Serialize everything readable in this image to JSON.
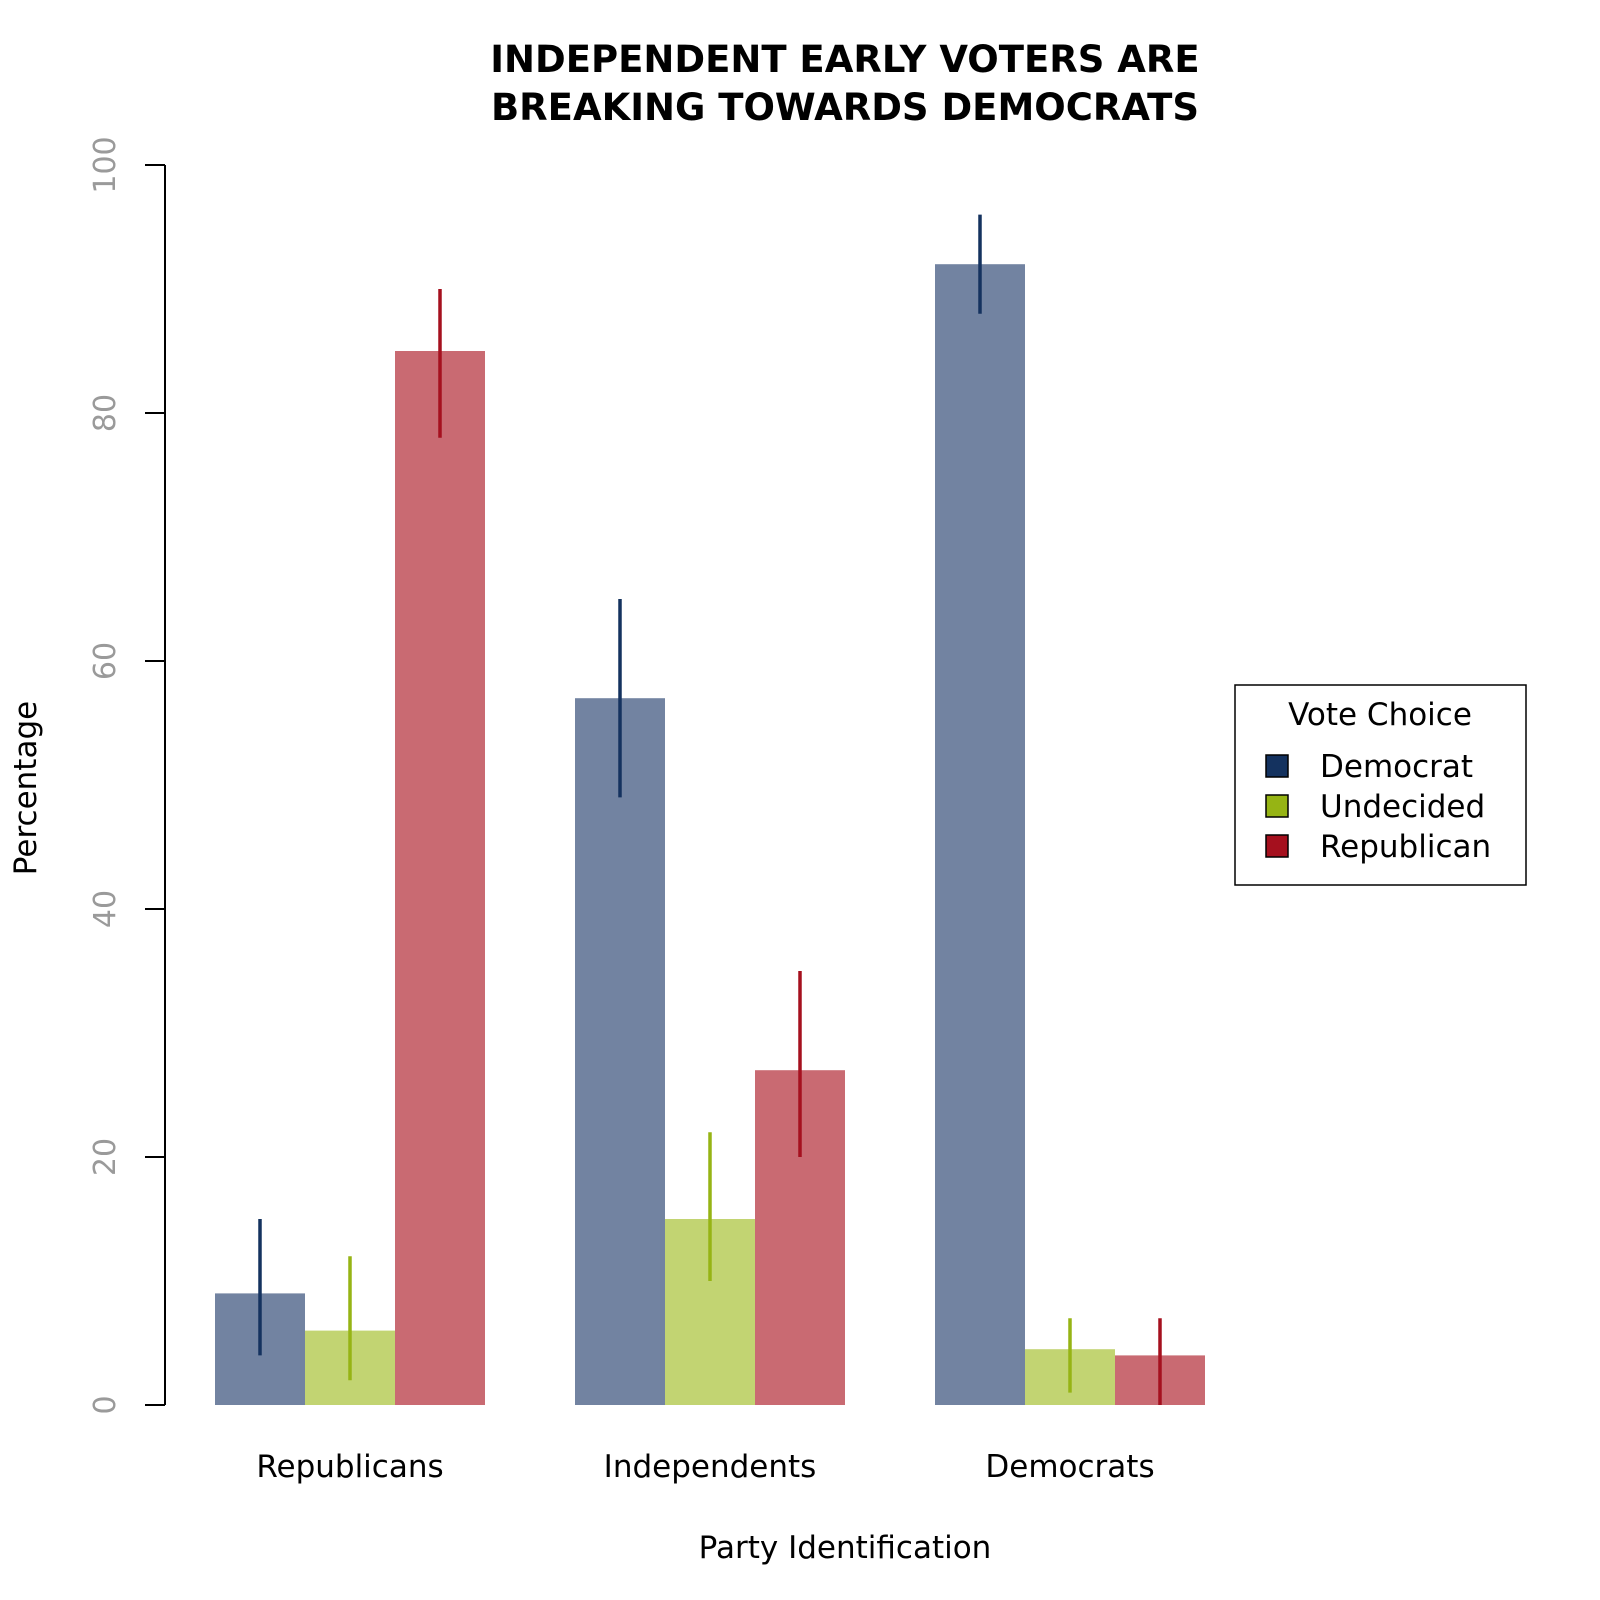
{
  "chart_data": {
    "type": "bar",
    "title_lines": [
      "INDEPENDENT EARLY VOTERS ARE",
      "BREAKING TOWARDS DEMOCRATS"
    ],
    "xlabel": "Party Identification",
    "ylabel": "Percentage",
    "ylim": [
      0,
      100
    ],
    "yticks": [
      0,
      20,
      40,
      60,
      80,
      100
    ],
    "categories": [
      "Republicans",
      "Independents",
      "Democrats"
    ],
    "grid": false,
    "legend": {
      "title": "Vote Choice",
      "placement": "right"
    },
    "series": [
      {
        "name": "Democrat",
        "color": "#14325f",
        "fill": "#7283a1",
        "values": [
          9,
          57,
          92
        ],
        "ci_low": [
          4,
          49,
          88
        ],
        "ci_high": [
          15,
          65,
          96
        ]
      },
      {
        "name": "Undecided",
        "color": "#96b414",
        "fill": "#c2d472",
        "values": [
          6,
          15,
          4.5
        ],
        "ci_low": [
          2,
          10,
          1
        ],
        "ci_high": [
          12,
          22,
          7
        ]
      },
      {
        "name": "Republican",
        "color": "#a5101e",
        "fill": "#c96a72",
        "values": [
          85,
          27,
          4
        ],
        "ci_low": [
          78,
          20,
          0
        ],
        "ci_high": [
          90,
          35,
          7
        ]
      }
    ]
  }
}
